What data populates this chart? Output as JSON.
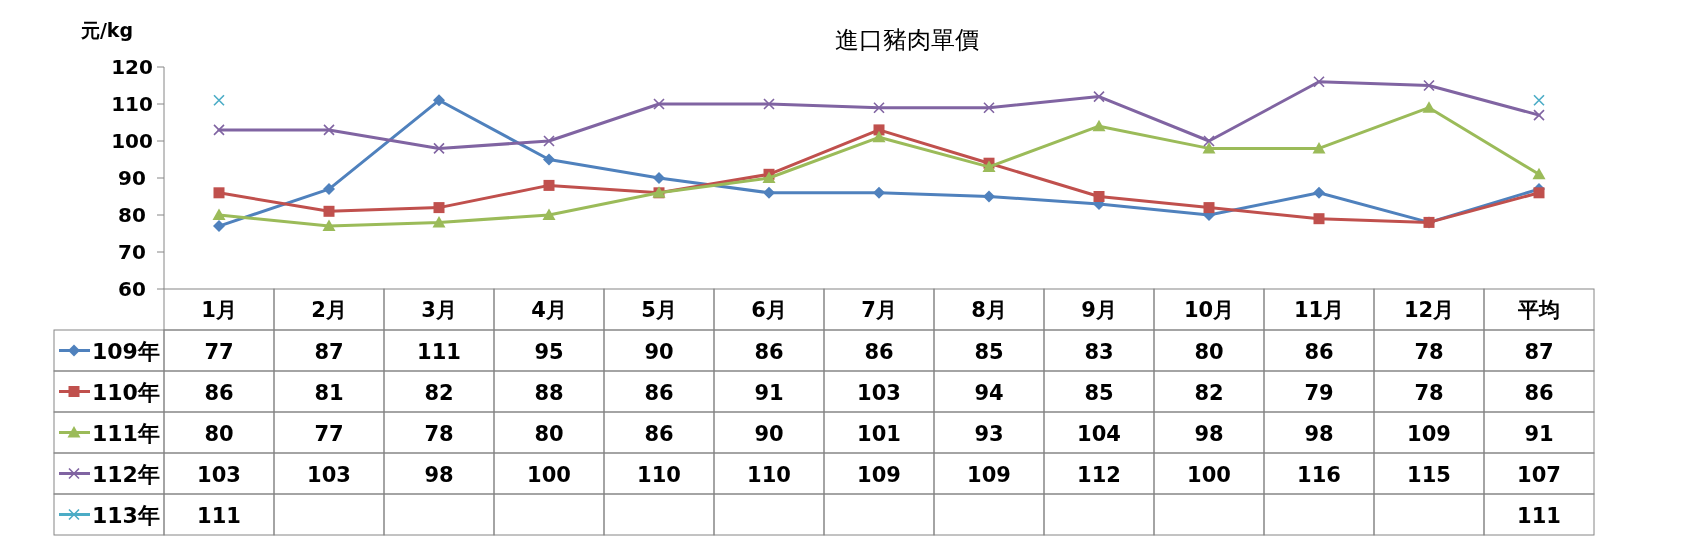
{
  "chart_data": {
    "type": "line",
    "title": "進口豬肉單價",
    "ylabel": "元/kg",
    "categories": [
      "1月",
      "2月",
      "3月",
      "4月",
      "5月",
      "6月",
      "7月",
      "8月",
      "9月",
      "10月",
      "11月",
      "12月",
      "平均"
    ],
    "series": [
      {
        "name": "109年",
        "color": "#4f81bd",
        "marker": "diamond",
        "values": [
          77,
          87,
          111,
          95,
          90,
          86,
          86,
          85,
          83,
          80,
          86,
          78,
          87
        ]
      },
      {
        "name": "110年",
        "color": "#c0504d",
        "marker": "square",
        "values": [
          86,
          81,
          82,
          88,
          86,
          91,
          103,
          94,
          85,
          82,
          79,
          78,
          86
        ]
      },
      {
        "name": "111年",
        "color": "#9bbb59",
        "marker": "triangle",
        "values": [
          80,
          77,
          78,
          80,
          86,
          90,
          101,
          93,
          104,
          98,
          98,
          109,
          91
        ]
      },
      {
        "name": "112年",
        "color": "#8064a2",
        "marker": "cross",
        "values": [
          103,
          103,
          98,
          100,
          110,
          110,
          109,
          109,
          112,
          100,
          116,
          115,
          107
        ]
      },
      {
        "name": "113年",
        "color": "#4bacc6",
        "marker": "cross",
        "values": [
          111,
          null,
          null,
          null,
          null,
          null,
          null,
          null,
          null,
          null,
          null,
          null,
          111
        ]
      }
    ],
    "ylim": [
      60,
      120
    ],
    "yticks": [
      60,
      70,
      80,
      90,
      100,
      110,
      120
    ],
    "data_labels": true,
    "legend": "left",
    "grid": false,
    "line_style": "solid"
  }
}
